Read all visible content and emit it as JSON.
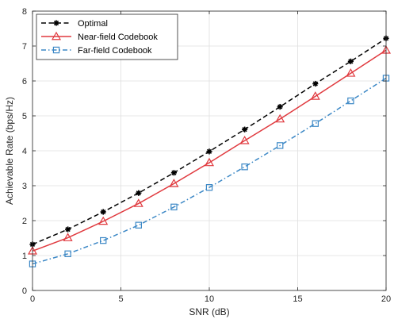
{
  "chart_data": {
    "type": "line",
    "title": "",
    "xlabel": "SNR (dB)",
    "ylabel": "Achievable Rate (bps/Hz)",
    "xlim": [
      0,
      20
    ],
    "ylim": [
      0,
      8
    ],
    "xticks": [
      0,
      5,
      10,
      15,
      20
    ],
    "yticks": [
      0,
      1,
      2,
      3,
      4,
      5,
      6,
      7,
      8
    ],
    "grid": true,
    "legend_position": "top-left",
    "x": [
      0,
      2,
      4,
      6,
      8,
      10,
      12,
      14,
      16,
      18,
      20
    ],
    "series": [
      {
        "name": "Optimal",
        "color": "#000000",
        "line_style": "dashed",
        "marker": "asterisk",
        "values": [
          1.32,
          1.75,
          2.25,
          2.79,
          3.37,
          3.98,
          4.61,
          5.26,
          5.92,
          6.56,
          7.22
        ]
      },
      {
        "name": "Near-field Codebook",
        "color": "#e0393e",
        "line_style": "solid",
        "marker": "triangle",
        "values": [
          1.13,
          1.51,
          1.98,
          2.49,
          3.06,
          3.66,
          4.29,
          4.91,
          5.56,
          6.22,
          6.88
        ]
      },
      {
        "name": "Far-field Codebook",
        "color": "#3c88c6",
        "line_style": "dash-dot",
        "marker": "square",
        "values": [
          0.76,
          1.05,
          1.43,
          1.87,
          2.39,
          2.95,
          3.54,
          4.15,
          4.78,
          5.43,
          6.08
        ]
      }
    ]
  }
}
